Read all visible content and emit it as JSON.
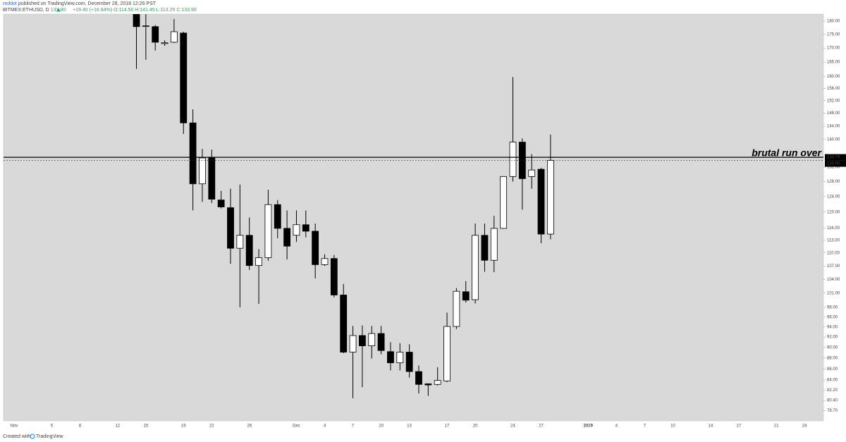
{
  "header": {
    "author": "reddot",
    "published": "published on TradingView.com, December 28, 2018 12:26 PST",
    "symbol": "BITMEX:ETHUSD, D",
    "price": "133.90",
    "change": "+19.40 (+16.94%)",
    "open": "O:114.50",
    "high": "H:141.45",
    "low": "L:113.25",
    "close": "C:133.90"
  },
  "footer": {
    "created": "Created with",
    "brand": "TradingView"
  },
  "chart_data": {
    "type": "candlestick",
    "log_scale": true,
    "up_color": "#ffffff",
    "down_color": "#000000",
    "background": "#d9d9d9",
    "categories": [
      "Nov",
      null,
      null,
      null,
      "5",
      null,
      null,
      "8",
      null,
      null,
      null,
      "12",
      null,
      null,
      "15",
      null,
      null,
      null,
      "19",
      null,
      null,
      "22",
      null,
      null,
      null,
      "26",
      null,
      null,
      null,
      null,
      "Dec",
      null,
      null,
      "4",
      null,
      null,
      "7",
      null,
      null,
      "10",
      null,
      null,
      "13",
      null,
      null,
      null,
      "17",
      null,
      null,
      "20",
      null,
      null,
      null,
      "24",
      null,
      null,
      "27",
      null,
      null,
      null,
      null,
      "2019",
      null,
      null,
      "4",
      null,
      null,
      "7",
      null,
      null,
      "10",
      null,
      null,
      null,
      "14",
      null,
      null,
      "17",
      null,
      null,
      null,
      "21",
      null,
      null,
      "24",
      null,
      null
    ],
    "open": [
      null,
      null,
      null,
      null,
      null,
      null,
      null,
      null,
      null,
      null,
      null,
      null,
      null,
      182.7,
      178.0,
      177.9,
      171.6,
      172.1,
      175.5,
      145.0,
      127.4,
      134.6,
      123.1,
      121.1,
      111.1,
      114.2,
      107.1,
      108.9,
      121.9,
      115.9,
      114.2,
      116.8,
      115.2,
      107.3,
      108.7,
      100.6,
      89.1,
      92.3,
      90.3,
      92.7,
      89.2,
      87.1,
      89.1,
      85.5,
      83.3,
      83.2,
      83.8,
      94.1,
      101.3,
      99.6,
      114.2,
      108.3,
      115.9,
      129.4,
      139.2,
      129.4,
      131.4,
      114.5,
      null,
      null,
      null,
      null,
      null,
      null,
      null,
      null,
      null,
      null,
      null,
      null,
      null,
      null,
      null,
      null,
      null,
      null,
      null,
      null,
      null,
      null,
      null,
      null,
      null,
      null,
      null,
      null,
      null
    ],
    "high": [
      null,
      null,
      null,
      null,
      null,
      null,
      null,
      null,
      null,
      null,
      null,
      null,
      null,
      185,
      182.7,
      178.5,
      172.8,
      180.8,
      176,
      149.2,
      137.2,
      137,
      125.5,
      126.1,
      127.2,
      118.6,
      110.9,
      125.8,
      123.1,
      120.4,
      120.4,
      120.4,
      117.1,
      109.7,
      109.5,
      103,
      94.2,
      94.3,
      94.2,
      94.2,
      91,
      90.8,
      90.6,
      86.6,
      83.4,
      86.3,
      96.9,
      102.1,
      103.6,
      117.1,
      117.1,
      119,
      129.5,
      159.8,
      140.3,
      135.7,
      131.8,
      141.45,
      null,
      null,
      null,
      null,
      null,
      null,
      null,
      null,
      null,
      null,
      null,
      null,
      null,
      null,
      null,
      null,
      null,
      null,
      null,
      null,
      null,
      null,
      null,
      null,
      null,
      null,
      null,
      null,
      null
    ],
    "low": [
      null,
      null,
      null,
      null,
      null,
      null,
      null,
      null,
      null,
      null,
      null,
      null,
      null,
      162.6,
      165.8,
      169.1,
      170.8,
      171.8,
      141.6,
      120.4,
      122.6,
      122.3,
      120.9,
      107.5,
      98,
      106.1,
      98.7,
      108.2,
      113.5,
      108.5,
      112.6,
      113.7,
      104.2,
      107,
      100.1,
      88.9,
      80.8,
      82.7,
      87.9,
      88.7,
      85.7,
      85.7,
      84.4,
      81.6,
      81.2,
      83,
      83.6,
      93.6,
      99,
      98.8,
      105.7,
      105.6,
      115.8,
      128,
      120.6,
      126.1,
      112.3,
      113.25,
      null,
      null,
      null,
      null,
      null,
      null,
      null,
      null,
      null,
      null,
      null,
      null,
      null,
      null,
      null,
      null,
      null,
      null,
      null,
      null,
      null,
      null,
      null,
      null,
      null,
      null,
      null,
      null,
      null
    ],
    "close": [
      null,
      null,
      null,
      null,
      null,
      null,
      null,
      null,
      null,
      null,
      null,
      null,
      null,
      177.9,
      178.2,
      172.1,
      171.9,
      176.0,
      145.0,
      127.4,
      134.6,
      123.3,
      121.3,
      111.1,
      114.2,
      107.1,
      108.9,
      121.9,
      115.9,
      111.6,
      116.8,
      115.2,
      107.3,
      108.7,
      100.6,
      89.1,
      92.3,
      90.3,
      92.7,
      89.4,
      87.1,
      89.1,
      85.5,
      83.2,
      83.1,
      83.9,
      94.1,
      101.4,
      99.5,
      114.2,
      108.3,
      115.9,
      129.4,
      139.2,
      128.8,
      131.2,
      114.5,
      133.9,
      null,
      null,
      null,
      null,
      null,
      null,
      null,
      null,
      null,
      null,
      null,
      null,
      null,
      null,
      null,
      null,
      null,
      null,
      null,
      null,
      null,
      null,
      null,
      null,
      null,
      null,
      null,
      null,
      null
    ],
    "ylim": [
      77.0,
      182.7
    ],
    "yticks": [
      {
        "value": 180,
        "label": "180.00"
      },
      {
        "value": 175,
        "label": "175.00"
      },
      {
        "value": 170,
        "label": "170.00"
      },
      {
        "value": 165,
        "label": "165.00"
      },
      {
        "value": 160,
        "label": "160.00"
      },
      {
        "value": 156,
        "label": "156.00"
      },
      {
        "value": 152,
        "label": "152.00"
      },
      {
        "value": 148,
        "label": "148.00"
      },
      {
        "value": 144,
        "label": "144.00"
      },
      {
        "value": 140,
        "label": "140.00"
      },
      {
        "value": 132,
        "label": "132.00"
      },
      {
        "value": 128,
        "label": "128.00"
      },
      {
        "value": 124,
        "label": "124.00"
      },
      {
        "value": 120,
        "label": "120.00"
      },
      {
        "value": 116,
        "label": "116.00"
      },
      {
        "value": 113,
        "label": "113.00"
      },
      {
        "value": 110,
        "label": "110.00"
      },
      {
        "value": 107,
        "label": "107.00"
      },
      {
        "value": 104,
        "label": "104.00"
      },
      {
        "value": 101,
        "label": "101.00"
      },
      {
        "value": 98,
        "label": "98.00"
      },
      {
        "value": 96,
        "label": "96.00"
      },
      {
        "value": 94,
        "label": "94.00"
      },
      {
        "value": 92,
        "label": "92.00"
      },
      {
        "value": 90,
        "label": "90.00"
      },
      {
        "value": 88,
        "label": "88.00"
      },
      {
        "value": 86,
        "label": "86.00"
      },
      {
        "value": 84,
        "label": "84.00"
      },
      {
        "value": 82.2,
        "label": "82.20"
      },
      {
        "value": 80.4,
        "label": "80.40"
      },
      {
        "value": 78.7,
        "label": "78.70"
      }
    ],
    "hline": {
      "value": 134.79,
      "label": "134.79"
    },
    "last_price": {
      "value": 133.9,
      "label": "133.90"
    },
    "annotation": "brutal run over"
  }
}
